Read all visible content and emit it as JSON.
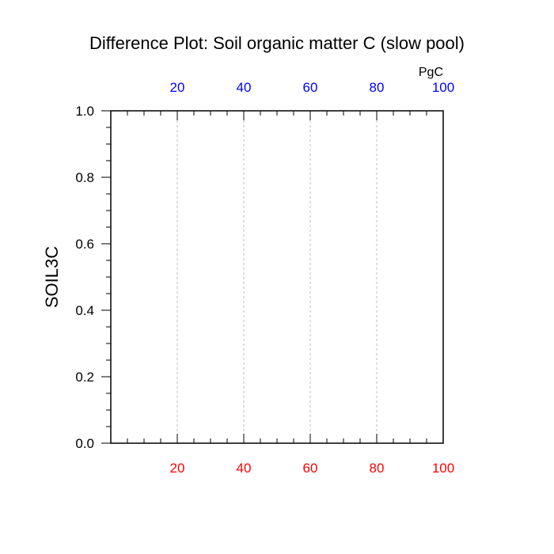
{
  "chart_data": {
    "type": "line",
    "title": "Difference Plot: Soil organic matter C (slow pool)",
    "ylabel": "SOIL3C",
    "units": "PgC",
    "xlim": [
      0,
      100
    ],
    "ylim": [
      0,
      1
    ],
    "x_ticks": [
      20,
      40,
      60,
      80,
      100
    ],
    "x_tick_labels": [
      "20",
      "40",
      "60",
      "80",
      "100"
    ],
    "y_ticks": [
      0,
      0.2,
      0.4,
      0.6,
      0.8,
      1.0
    ],
    "y_tick_labels": [
      "0.0",
      "0.2",
      "0.4",
      "0.6",
      "0.8",
      "1.0"
    ],
    "grid": "vertical dashed at x ticks",
    "series": [],
    "colors": {
      "bottom_axis_labels": "#ff0000",
      "top_axis_labels": "#0000ff",
      "frame": "#000000",
      "grid": "#bdbdbd"
    }
  }
}
